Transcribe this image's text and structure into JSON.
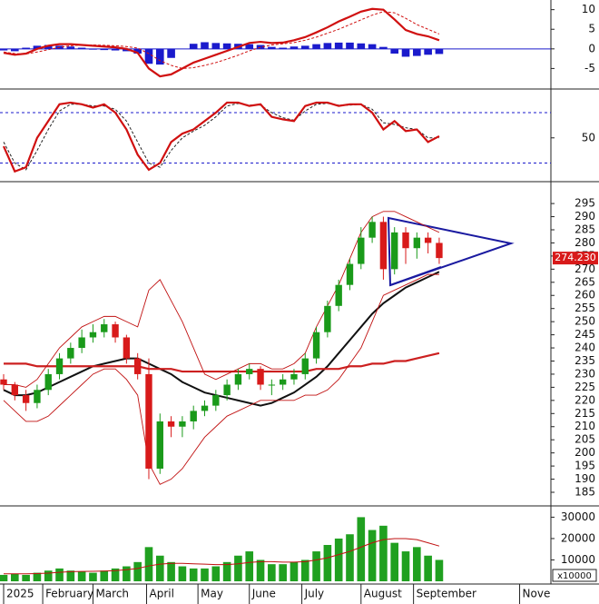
{
  "chart_data": [
    {
      "type": "macd",
      "ylim": [
        -10,
        12
      ],
      "yticks": [
        -5,
        0,
        5,
        10
      ],
      "zero_color": "#1a1acc",
      "macd": {
        "color": "#d01010",
        "values": [
          -1,
          -1.5,
          -1.2,
          0,
          0.8,
          1.2,
          1.2,
          1,
          0.8,
          0.6,
          0.4,
          0,
          -1,
          -5,
          -7,
          -6.5,
          -5,
          -3.5,
          -2.5,
          -1.5,
          -0.5,
          0.5,
          1.5,
          1.8,
          1.5,
          1.6,
          2.2,
          3,
          4.2,
          5.5,
          7,
          8.2,
          9.5,
          10.2,
          10,
          7.5,
          4.8,
          3.8,
          3.2,
          2.2
        ]
      },
      "signal": {
        "color": "#d01010",
        "values": [
          -0.8,
          -1.2,
          -1.3,
          -0.8,
          -0.2,
          0.4,
          0.8,
          1,
          1,
          0.9,
          0.8,
          0.6,
          0.2,
          -1.2,
          -3,
          -4.2,
          -5,
          -4.8,
          -4.2,
          -3.5,
          -2.6,
          -1.6,
          -0.5,
          0.4,
          1,
          1.3,
          1.6,
          2.2,
          3,
          4,
          5,
          6.2,
          7.4,
          8.6,
          9.5,
          9.2,
          7.8,
          6.2,
          5,
          3.8
        ]
      },
      "histogram": {
        "color": "#1a1acc",
        "values": [
          -0.4,
          -0.6,
          0.3,
          0.8,
          1,
          0.8,
          0.6,
          0.3,
          -0.2,
          -0.3,
          -0.4,
          -0.6,
          -1.2,
          -3.8,
          -4,
          -2.3,
          0,
          1.3,
          1.7,
          1.5,
          1.4,
          1.3,
          1.2,
          1,
          0.5,
          0.3,
          0.6,
          0.8,
          1.2,
          1.5,
          1.6,
          1.6,
          1.4,
          1.2,
          0.5,
          -1.2,
          -2,
          -1.8,
          -1.5,
          -1.3
        ]
      }
    },
    {
      "type": "stochastic",
      "ylim": [
        0,
        106
      ],
      "yticks": [
        50
      ],
      "levels": [
        20,
        80
      ],
      "level_color": "#1a1acc",
      "k": {
        "color": "#d01010",
        "values": [
          40,
          10,
          15,
          50,
          70,
          90,
          92,
          90,
          86,
          90,
          80,
          60,
          30,
          12,
          20,
          45,
          55,
          60,
          70,
          80,
          92,
          92,
          88,
          90,
          75,
          72,
          70,
          88,
          92,
          92,
          88,
          90,
          90,
          80,
          60,
          70,
          58,
          60,
          45,
          52
        ]
      },
      "d": {
        "color": "#222222",
        "values": [
          45,
          20,
          12,
          35,
          60,
          82,
          90,
          90,
          88,
          88,
          84,
          70,
          45,
          20,
          15,
          35,
          50,
          58,
          65,
          75,
          88,
          91,
          89,
          89,
          80,
          74,
          71,
          82,
          90,
          91,
          89,
          89,
          90,
          84,
          68,
          66,
          62,
          60,
          50,
          50
        ]
      }
    },
    {
      "type": "candlestick",
      "ylim": [
        180.5,
        302.3
      ],
      "yticks": [
        185,
        190,
        195,
        200,
        205,
        210,
        215,
        220,
        225,
        230,
        235,
        240,
        245,
        250,
        255,
        260,
        265,
        270,
        275,
        280,
        285,
        290,
        295
      ],
      "up_color": "#1a9a1a",
      "down_color": "#d81a1a",
      "open": [
        228,
        226,
        222,
        219,
        224,
        230,
        236,
        240,
        244,
        246,
        249,
        244,
        236,
        230,
        194,
        212,
        210,
        212,
        216,
        218,
        222,
        226,
        230,
        232,
        226,
        226,
        228,
        230,
        236,
        246,
        256,
        264,
        272,
        282,
        288,
        270,
        284,
        278,
        282,
        280
      ],
      "high": [
        230,
        227,
        224,
        226,
        232,
        238,
        242,
        247,
        249,
        251,
        250,
        245,
        238,
        236,
        215,
        214,
        214,
        218,
        220,
        224,
        228,
        232,
        234,
        233,
        228,
        230,
        232,
        238,
        248,
        258,
        266,
        274,
        286,
        290,
        290,
        286,
        286,
        284,
        284,
        282
      ],
      "low": [
        224,
        220,
        216,
        217,
        222,
        228,
        234,
        238,
        242,
        244,
        242,
        234,
        228,
        190,
        192,
        206,
        206,
        209,
        214,
        216,
        220,
        224,
        228,
        224,
        222,
        224,
        226,
        228,
        234,
        244,
        254,
        262,
        270,
        280,
        266,
        268,
        272,
        274,
        276,
        272
      ],
      "close": [
        226,
        222,
        219,
        224,
        230,
        236,
        240,
        244,
        246,
        249,
        244,
        236,
        230,
        194,
        212,
        210,
        212,
        216,
        218,
        222,
        226,
        230,
        232,
        226,
        226,
        228,
        230,
        236,
        246,
        256,
        264,
        272,
        282,
        288,
        270,
        284,
        278,
        282,
        280,
        274.23
      ],
      "last_price": {
        "value": 274.23,
        "label": "274.230"
      },
      "last_color": "#d81a1a",
      "lines": [
        {
          "color": "#111111",
          "width": 2,
          "values": [
            224,
            222,
            222,
            223,
            225,
            227,
            229,
            231,
            233,
            234,
            235,
            236,
            236,
            234,
            232,
            230,
            227,
            225,
            223,
            222,
            221,
            220,
            219,
            218,
            219,
            221,
            223,
            226,
            229,
            233,
            238,
            243,
            248,
            253,
            257,
            260,
            263,
            265,
            267,
            269
          ]
        },
        {
          "color": "#cc2020",
          "width": 2.2,
          "values": [
            234,
            234,
            234,
            233,
            233,
            233,
            233,
            233,
            233,
            233,
            233,
            233,
            233,
            232,
            232,
            232,
            231,
            231,
            231,
            231,
            231,
            231,
            231,
            231,
            231,
            231,
            231,
            231,
            232,
            232,
            232,
            233,
            233,
            234,
            234,
            235,
            235,
            236,
            237,
            238
          ]
        },
        {
          "color": "#c01010",
          "width": 0.9,
          "values": [
            226,
            226,
            225,
            228,
            234,
            240,
            244,
            248,
            250,
            252,
            252,
            250,
            248,
            262,
            266,
            258,
            250,
            240,
            230,
            228,
            230,
            232,
            234,
            234,
            232,
            232,
            234,
            238,
            248,
            256,
            264,
            274,
            284,
            290,
            292,
            292,
            290,
            288,
            286,
            284
          ]
        },
        {
          "color": "#c01010",
          "width": 0.9,
          "values": [
            220,
            216,
            212,
            212,
            214,
            218,
            222,
            226,
            230,
            232,
            232,
            228,
            222,
            196,
            188,
            190,
            194,
            200,
            206,
            210,
            214,
            216,
            218,
            220,
            220,
            220,
            220,
            222,
            222,
            224,
            228,
            234,
            240,
            250,
            260,
            262,
            264,
            266,
            268,
            268
          ]
        }
      ]
    },
    {
      "type": "volume",
      "ylim": [
        0,
        34000
      ],
      "yticks": [
        10000,
        20000,
        30000
      ],
      "unit": "x10000",
      "color": "#20a020",
      "values": [
        3000,
        3500,
        3000,
        4000,
        5000,
        6000,
        5000,
        4500,
        4000,
        5000,
        6000,
        7000,
        9000,
        16000,
        12000,
        9000,
        7000,
        6000,
        6000,
        7000,
        9000,
        12000,
        14000,
        10000,
        8000,
        8000,
        9000,
        10000,
        14000,
        17000,
        20000,
        22000,
        30000,
        24000,
        26000,
        18000,
        14000,
        16000,
        12000,
        10000
      ],
      "ma": {
        "color": "#c01010",
        "values": [
          3500,
          3500,
          3500,
          3600,
          3800,
          4200,
          4500,
          4600,
          4700,
          4800,
          5000,
          5400,
          6000,
          7200,
          8000,
          8400,
          8400,
          8200,
          8000,
          7800,
          7800,
          8200,
          8800,
          9200,
          9200,
          9000,
          9000,
          9200,
          10000,
          11000,
          12500,
          14000,
          16000,
          18000,
          19500,
          20000,
          20000,
          19500,
          18000,
          16500
        ]
      },
      "xlim": [
        0,
        49
      ],
      "xticks": [
        {
          "value": 0,
          "label": "2025"
        },
        {
          "value": 3.5,
          "label": "February"
        },
        {
          "value": 8,
          "label": "March"
        },
        {
          "value": 12.8,
          "label": "April"
        },
        {
          "value": 17.4,
          "label": "May"
        },
        {
          "value": 22,
          "label": "June"
        },
        {
          "value": 26.7,
          "label": "July"
        },
        {
          "value": 32,
          "label": "August"
        },
        {
          "value": 36.7,
          "label": "September"
        },
        {
          "value": 46.2,
          "label": "Nove"
        }
      ]
    }
  ]
}
